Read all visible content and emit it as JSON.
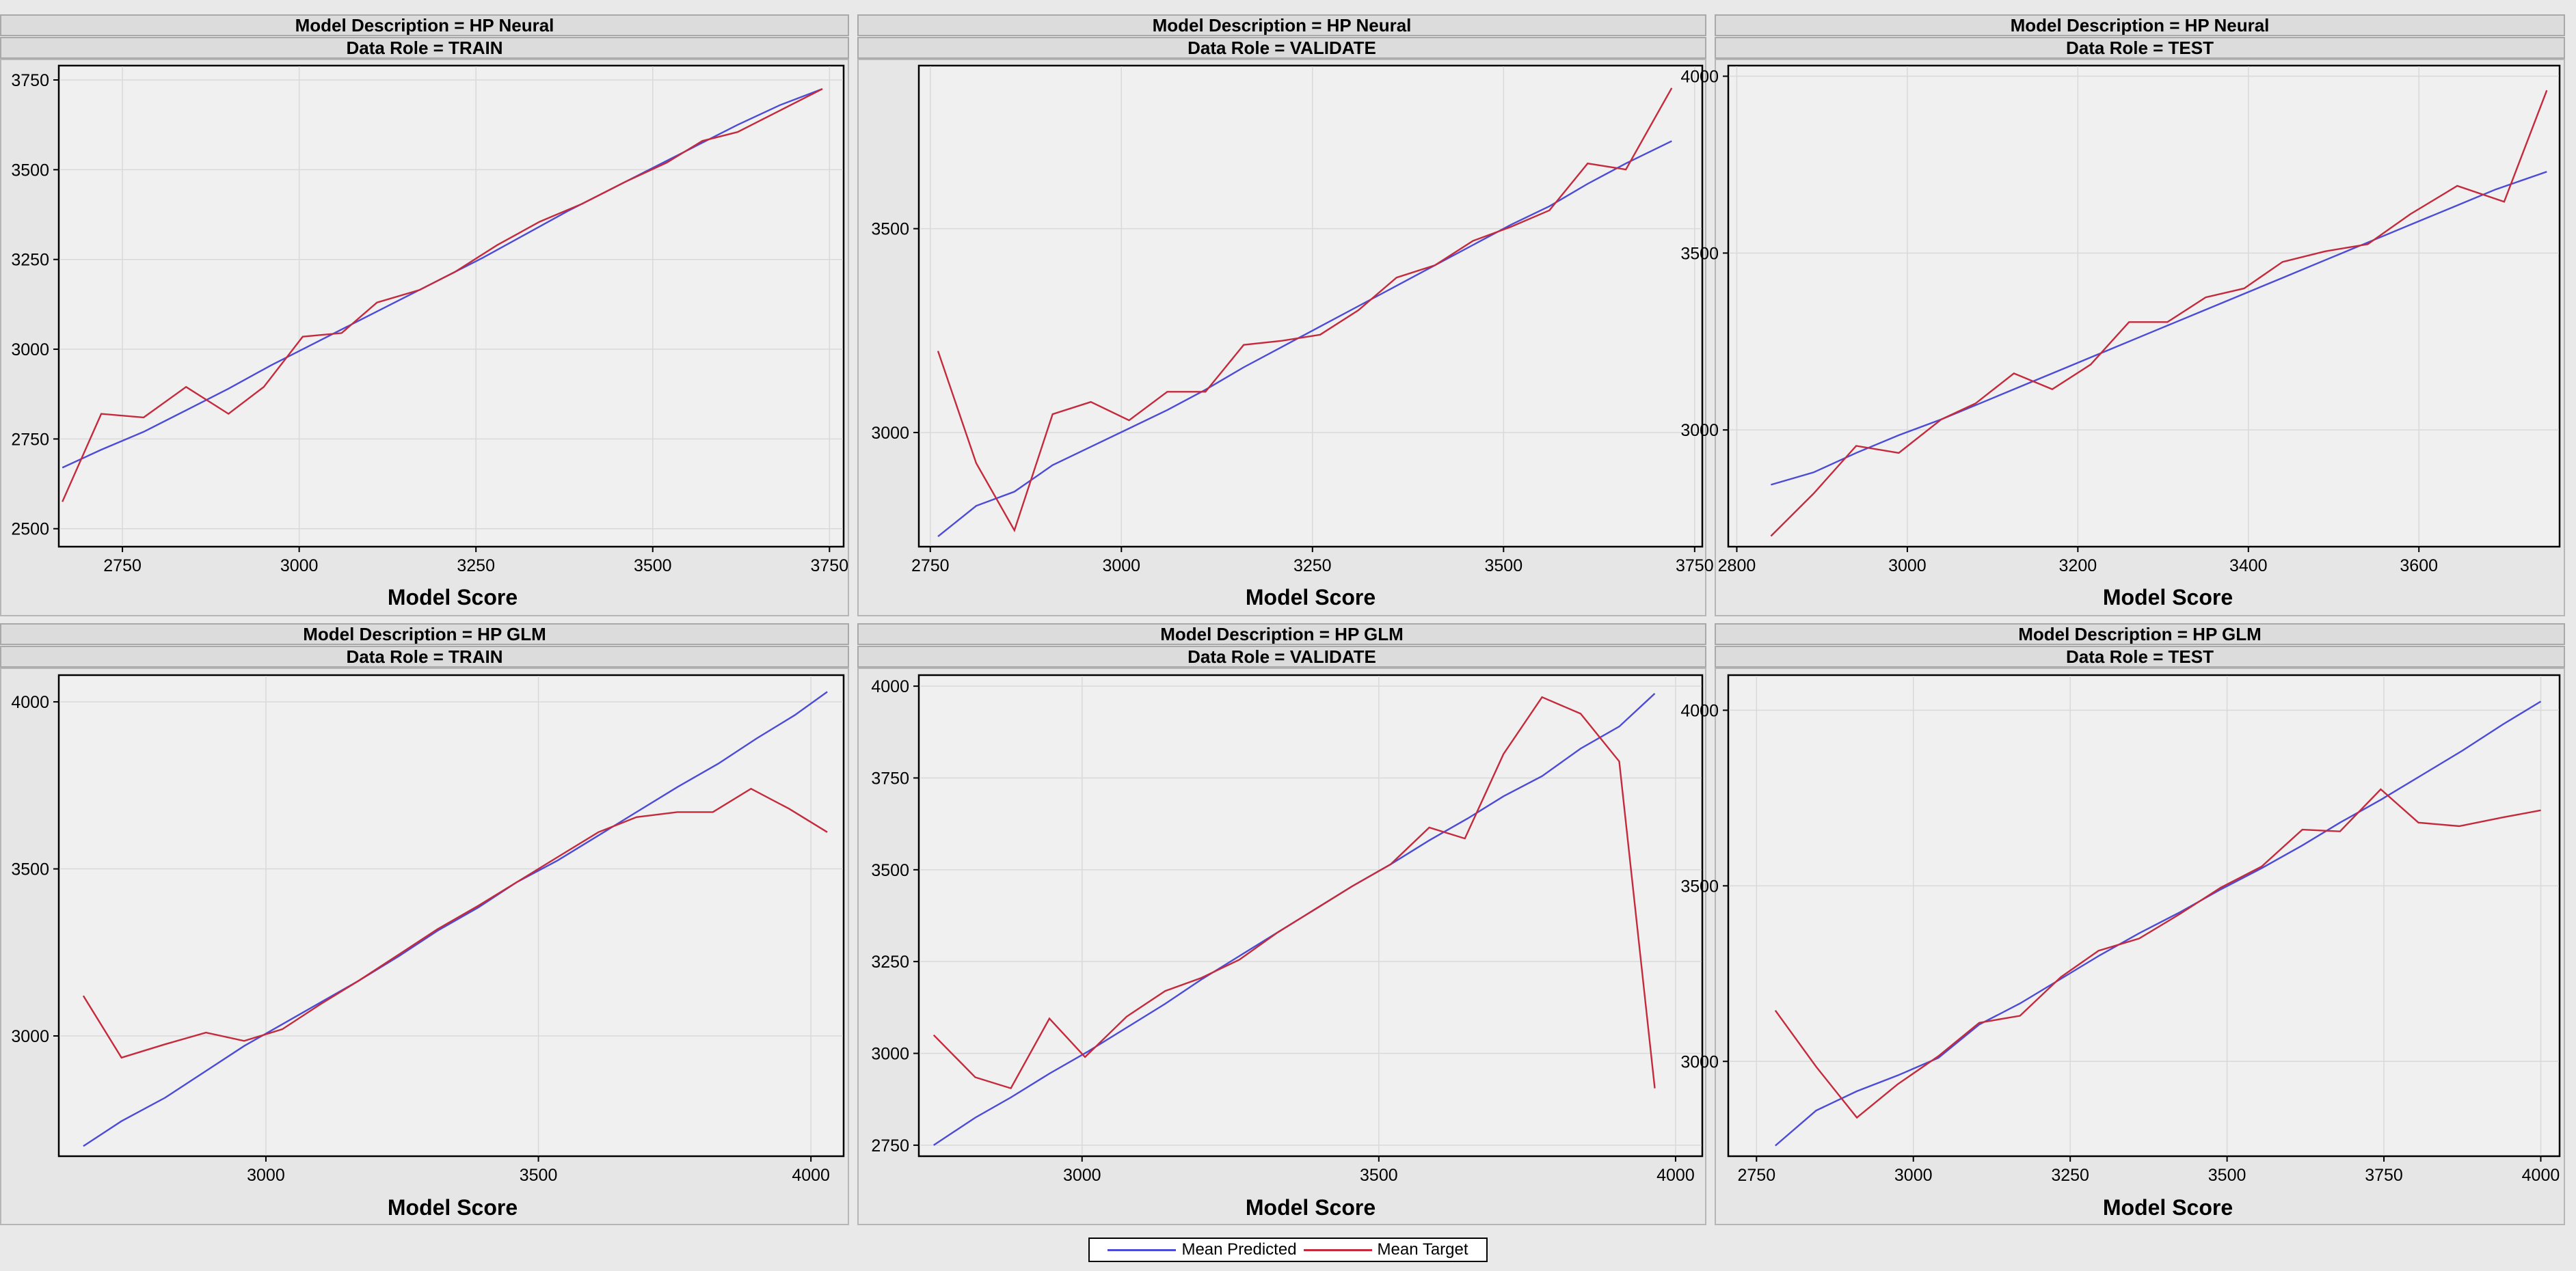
{
  "chart_data": [
    {
      "type": "line",
      "header_model": "Model Description = HP Neural",
      "header_role": "Data Role = TRAIN",
      "xlabel": "Model Score",
      "xlim": [
        2660,
        3770
      ],
      "ylim": [
        2450,
        3790
      ],
      "xticks": [
        2750,
        3000,
        3250,
        3500,
        3750
      ],
      "yticks": [
        2500,
        2750,
        3000,
        3250,
        3500,
        3750
      ],
      "series": [
        {
          "name": "Mean Predicted",
          "color": "#4b4bd8",
          "x": [
            2665,
            2720,
            2780,
            2840,
            2900,
            2960,
            3020,
            3080,
            3140,
            3200,
            3260,
            3320,
            3380,
            3440,
            3500,
            3560,
            3620,
            3680,
            3740
          ],
          "y": [
            2670,
            2720,
            2770,
            2830,
            2890,
            2955,
            3015,
            3075,
            3135,
            3195,
            3255,
            3320,
            3385,
            3445,
            3505,
            3565,
            3625,
            3680,
            3725
          ]
        },
        {
          "name": "Mean Target",
          "color": "#c42a3c",
          "x": [
            2665,
            2720,
            2780,
            2840,
            2900,
            2950,
            3005,
            3060,
            3110,
            3170,
            3220,
            3280,
            3340,
            3400,
            3460,
            3520,
            3570,
            3620,
            3680,
            3740
          ],
          "y": [
            2575,
            2820,
            2810,
            2895,
            2820,
            2895,
            3035,
            3045,
            3130,
            3165,
            3215,
            3290,
            3355,
            3405,
            3465,
            3520,
            3580,
            3605,
            3665,
            3725
          ]
        }
      ]
    },
    {
      "type": "line",
      "header_model": "Model Description = HP Neural",
      "header_role": "Data Role = VALIDATE",
      "xlabel": "Model Score",
      "xlim": [
        2735,
        3760
      ],
      "ylim": [
        2720,
        3900
      ],
      "xticks": [
        2750,
        3000,
        3250,
        3500,
        3750
      ],
      "yticks": [
        3000,
        3500
      ],
      "series": [
        {
          "name": "Mean Predicted",
          "color": "#4b4bd8",
          "x": [
            2760,
            2810,
            2860,
            2910,
            2960,
            3010,
            3060,
            3110,
            3160,
            3210,
            3260,
            3310,
            3360,
            3410,
            3460,
            3510,
            3560,
            3610,
            3660,
            3720
          ],
          "y": [
            2745,
            2820,
            2855,
            2920,
            2965,
            3010,
            3055,
            3105,
            3160,
            3210,
            3260,
            3310,
            3360,
            3410,
            3460,
            3510,
            3555,
            3610,
            3660,
            3715
          ]
        },
        {
          "name": "Mean Target",
          "color": "#c42a3c",
          "x": [
            2760,
            2810,
            2860,
            2910,
            2960,
            3010,
            3060,
            3110,
            3160,
            3210,
            3260,
            3310,
            3360,
            3410,
            3460,
            3510,
            3560,
            3610,
            3660,
            3720
          ],
          "y": [
            3200,
            2925,
            2760,
            3045,
            3075,
            3030,
            3100,
            3100,
            3215,
            3225,
            3240,
            3300,
            3380,
            3410,
            3470,
            3505,
            3545,
            3660,
            3645,
            3845
          ]
        }
      ]
    },
    {
      "type": "line",
      "header_model": "Model Description = HP Neural",
      "header_role": "Data Role = TEST",
      "xlabel": "Model Score",
      "xlim": [
        2790,
        3765
      ],
      "ylim": [
        2670,
        4030
      ],
      "xticks": [
        2800,
        3000,
        3200,
        3400,
        3600
      ],
      "yticks": [
        3000,
        3500,
        4000
      ],
      "series": [
        {
          "name": "Mean Predicted",
          "color": "#4b4bd8",
          "x": [
            2840,
            2890,
            2940,
            2990,
            3040,
            3090,
            3140,
            3190,
            3240,
            3290,
            3340,
            3390,
            3440,
            3490,
            3540,
            3590,
            3640,
            3690,
            3750
          ],
          "y": [
            2845,
            2880,
            2935,
            2985,
            3030,
            3080,
            3130,
            3180,
            3230,
            3280,
            3330,
            3380,
            3430,
            3480,
            3530,
            3580,
            3630,
            3680,
            3730
          ]
        },
        {
          "name": "Mean Target",
          "color": "#c42a3c",
          "x": [
            2840,
            2890,
            2940,
            2990,
            3040,
            3080,
            3125,
            3170,
            3215,
            3260,
            3305,
            3350,
            3395,
            3440,
            3490,
            3540,
            3590,
            3645,
            3700,
            3750
          ],
          "y": [
            2700,
            2820,
            2955,
            2935,
            3030,
            3075,
            3160,
            3115,
            3185,
            3305,
            3305,
            3375,
            3400,
            3475,
            3505,
            3525,
            3610,
            3690,
            3645,
            3960
          ]
        }
      ]
    },
    {
      "type": "line",
      "header_model": "Model Description = HP GLM",
      "header_role": "Data Role = TRAIN",
      "xlabel": "Model Score",
      "xlim": [
        2620,
        4060
      ],
      "ylim": [
        2640,
        4080
      ],
      "xticks": [
        3000,
        3500,
        4000
      ],
      "yticks": [
        3000,
        3500,
        4000
      ],
      "series": [
        {
          "name": "Mean Predicted",
          "color": "#4b4bd8",
          "x": [
            2665,
            2735,
            2815,
            2890,
            2960,
            3030,
            3100,
            3170,
            3245,
            3315,
            3390,
            3460,
            3535,
            3610,
            3680,
            3755,
            3830,
            3900,
            3970,
            4030
          ],
          "y": [
            2670,
            2745,
            2815,
            2895,
            2970,
            3035,
            3100,
            3165,
            3240,
            3315,
            3385,
            3460,
            3525,
            3600,
            3670,
            3745,
            3815,
            3890,
            3960,
            4030
          ]
        },
        {
          "name": "Mean Target",
          "color": "#c42a3c",
          "x": [
            2665,
            2735,
            2815,
            2890,
            2960,
            3030,
            3100,
            3170,
            3245,
            3315,
            3390,
            3460,
            3535,
            3610,
            3680,
            3755,
            3820,
            3890,
            3960,
            4030
          ],
          "y": [
            3120,
            2935,
            2975,
            3010,
            2985,
            3020,
            3095,
            3165,
            3245,
            3320,
            3390,
            3460,
            3535,
            3610,
            3655,
            3670,
            3670,
            3740,
            3680,
            3610
          ]
        }
      ]
    },
    {
      "type": "line",
      "header_model": "Model Description = HP GLM",
      "header_role": "Data Role = VALIDATE",
      "xlabel": "Model Score",
      "xlim": [
        2725,
        4045
      ],
      "ylim": [
        2720,
        4030
      ],
      "xticks": [
        3000,
        3500,
        4000
      ],
      "yticks": [
        2750,
        3000,
        3250,
        3500,
        3750,
        4000
      ],
      "series": [
        {
          "name": "Mean Predicted",
          "color": "#4b4bd8",
          "x": [
            2750,
            2820,
            2880,
            2945,
            3010,
            3075,
            3140,
            3200,
            3265,
            3330,
            3395,
            3455,
            3520,
            3585,
            3650,
            3710,
            3775,
            3840,
            3905,
            3965
          ],
          "y": [
            2750,
            2825,
            2880,
            2945,
            3005,
            3070,
            3135,
            3200,
            3265,
            3330,
            3395,
            3455,
            3515,
            3580,
            3640,
            3700,
            3755,
            3830,
            3890,
            3980
          ]
        },
        {
          "name": "Mean Target",
          "color": "#c42a3c",
          "x": [
            2750,
            2820,
            2880,
            2945,
            3005,
            3075,
            3140,
            3200,
            3265,
            3330,
            3395,
            3455,
            3520,
            3585,
            3645,
            3710,
            3775,
            3840,
            3905,
            3965
          ],
          "y": [
            3050,
            2935,
            2905,
            3095,
            2990,
            3100,
            3170,
            3205,
            3255,
            3330,
            3395,
            3455,
            3515,
            3615,
            3585,
            3815,
            3970,
            3925,
            3795,
            2905
          ]
        }
      ]
    },
    {
      "type": "line",
      "header_model": "Model Description = HP GLM",
      "header_role": "Data Role = TEST",
      "xlabel": "Model Score",
      "xlim": [
        2705,
        4030
      ],
      "ylim": [
        2730,
        4100
      ],
      "xticks": [
        2750,
        3000,
        3250,
        3500,
        3750,
        4000
      ],
      "yticks": [
        3000,
        3500,
        4000
      ],
      "series": [
        {
          "name": "Mean Predicted",
          "color": "#4b4bd8",
          "x": [
            2780,
            2845,
            2910,
            2975,
            3040,
            3105,
            3170,
            3235,
            3295,
            3360,
            3425,
            3490,
            3555,
            3620,
            3680,
            3745,
            3810,
            3875,
            3940,
            4000
          ],
          "y": [
            2760,
            2860,
            2915,
            2960,
            3010,
            3105,
            3165,
            3235,
            3300,
            3365,
            3425,
            3490,
            3550,
            3615,
            3680,
            3745,
            3815,
            3885,
            3960,
            4025
          ]
        },
        {
          "name": "Mean Target",
          "color": "#c42a3c",
          "x": [
            2780,
            2845,
            2910,
            2975,
            3040,
            3105,
            3170,
            3235,
            3295,
            3360,
            3425,
            3490,
            3555,
            3620,
            3680,
            3745,
            3805,
            3870,
            3940,
            4000
          ],
          "y": [
            3145,
            2985,
            2840,
            2935,
            3015,
            3110,
            3130,
            3240,
            3315,
            3350,
            3420,
            3495,
            3555,
            3660,
            3655,
            3775,
            3680,
            3670,
            3695,
            3715
          ]
        }
      ]
    }
  ],
  "legend": {
    "items": [
      {
        "label": "Mean Predicted",
        "color": "#4b4bd8"
      },
      {
        "label": "Mean Target",
        "color": "#c42a3c"
      }
    ]
  }
}
